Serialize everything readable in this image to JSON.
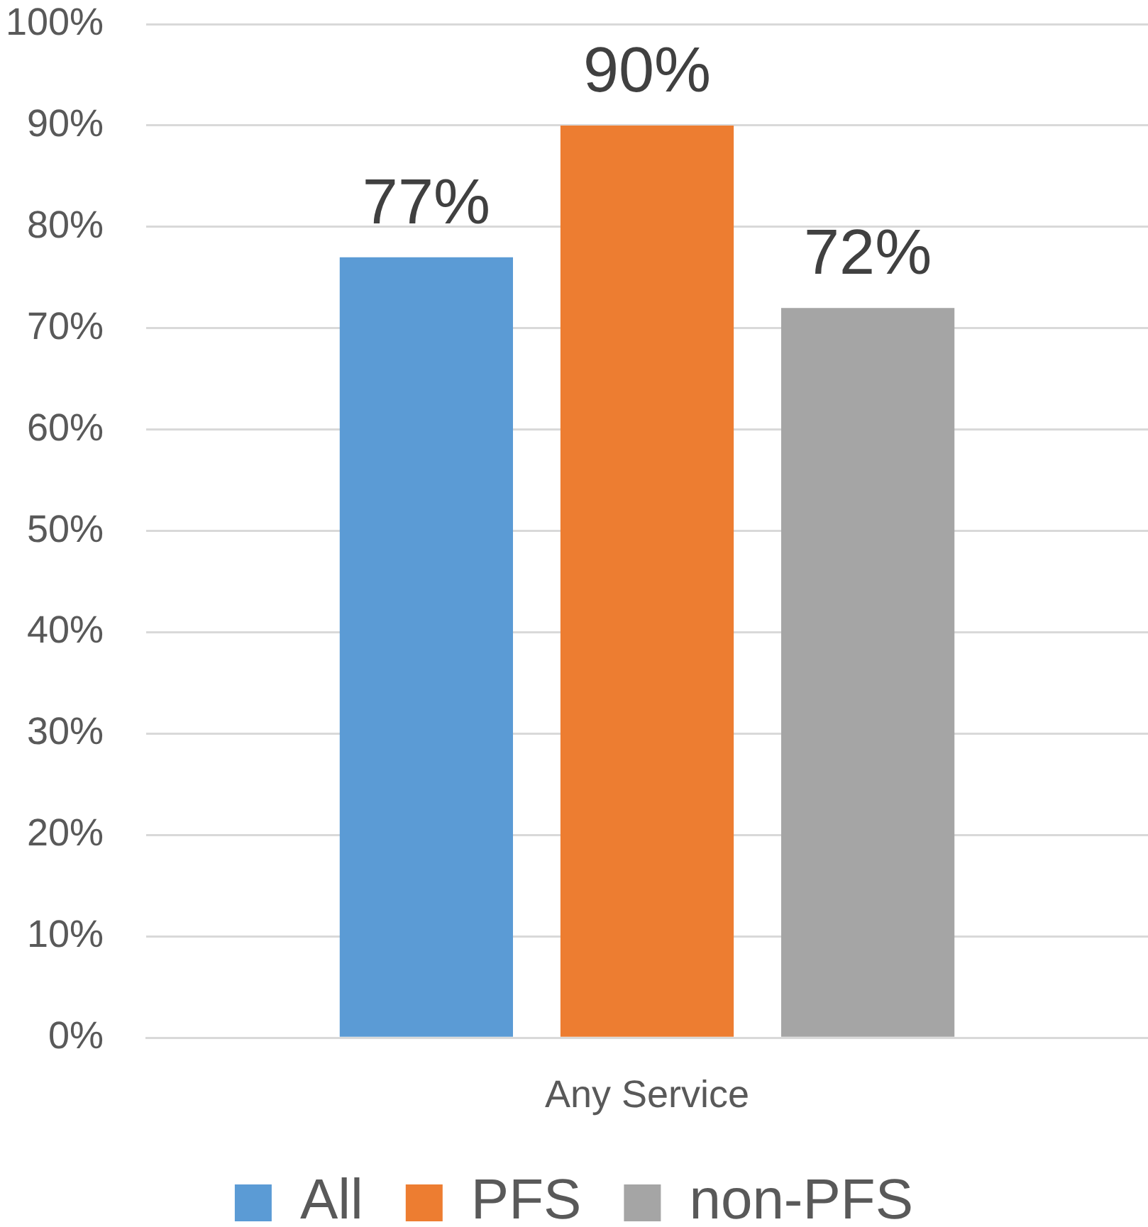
{
  "chart_data": {
    "type": "bar",
    "categories": [
      "Any Service"
    ],
    "series": [
      {
        "name": "All",
        "color": "#5b9bd5",
        "values": [
          77
        ],
        "value_labels": [
          "77%"
        ]
      },
      {
        "name": "PFS",
        "color": "#ed7d31",
        "values": [
          90
        ],
        "value_labels": [
          "90%"
        ]
      },
      {
        "name": "non-PFS",
        "color": "#a5a5a5",
        "values": [
          72
        ],
        "value_labels": [
          "72%"
        ]
      }
    ],
    "ylim": [
      0,
      100
    ],
    "yticks": [
      {
        "value": 0,
        "label": "0%"
      },
      {
        "value": 10,
        "label": "10%"
      },
      {
        "value": 20,
        "label": "20%"
      },
      {
        "value": 30,
        "label": "30%"
      },
      {
        "value": 40,
        "label": "40%"
      },
      {
        "value": 50,
        "label": "50%"
      },
      {
        "value": 60,
        "label": "60%"
      },
      {
        "value": 70,
        "label": "70%"
      },
      {
        "value": 80,
        "label": "80%"
      },
      {
        "value": 90,
        "label": "90%"
      },
      {
        "value": 100,
        "label": "100%"
      }
    ],
    "grid": "y",
    "legend": "bottom"
  }
}
